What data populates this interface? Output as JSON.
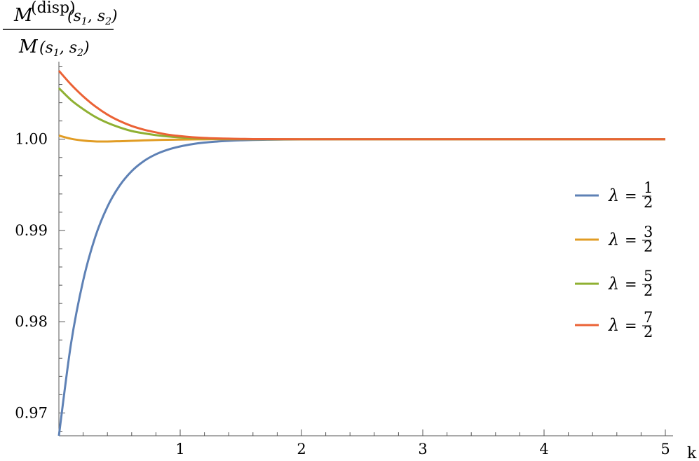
{
  "chart_data": {
    "type": "line",
    "title": "",
    "xlabel": "k",
    "ylabel": {
      "numerator": "M(disp) (s1, s2)",
      "denominator": "M (s1, s2)"
    },
    "xlim": [
      0,
      5
    ],
    "ylim": [
      0.9675,
      1.0085
    ],
    "x_ticks": [
      1,
      2,
      3,
      4,
      5
    ],
    "x_tick_labels": [
      "1",
      "2",
      "3",
      "4",
      "5"
    ],
    "y_ticks": [
      0.97,
      0.98,
      0.99,
      1.0
    ],
    "y_tick_labels": [
      "0.97",
      "0.98",
      "0.99",
      "1.00"
    ],
    "grid": false,
    "legend_position": "right",
    "x": [
      0,
      0.1,
      0.2,
      0.3,
      0.4,
      0.5,
      0.6,
      0.7,
      0.8,
      0.9,
      1.0,
      1.1,
      1.2,
      1.3,
      1.4,
      1.5,
      1.6,
      1.8,
      2.0,
      2.5,
      3.0,
      3.5,
      4.0,
      4.5,
      5.0
    ],
    "series": [
      {
        "name": "λ = 1/2",
        "color": "#5E81B5",
        "values": [
          0.9675,
          0.9776,
          0.9845,
          0.9893,
          0.9926,
          0.9949,
          0.9965,
          0.9976,
          0.99835,
          0.99886,
          0.99921,
          0.99946,
          0.99963,
          0.99974,
          0.99982,
          0.99988,
          0.99992,
          0.99996,
          0.99998,
          1.0,
          1.0,
          1.0,
          1.0,
          1.0,
          1.0
        ]
      },
      {
        "name": "λ = 3/2",
        "color": "#E19C24",
        "values": [
          1.0004,
          1.00005,
          0.99985,
          0.99976,
          0.99975,
          0.99978,
          0.99982,
          0.99987,
          0.99991,
          0.99994,
          0.99996,
          0.99998,
          0.99999,
          1.0,
          1.0,
          1.0,
          1.0,
          1.0,
          1.0,
          1.0,
          1.0,
          1.0,
          1.0,
          1.0,
          1.0
        ]
      },
      {
        "name": "λ = 5/2",
        "color": "#8FB032",
        "values": [
          1.0056,
          1.0043,
          1.0033,
          1.00245,
          1.0018,
          1.0013,
          1.0009,
          1.00065,
          1.00045,
          1.0003,
          1.0002,
          1.00013,
          1.00008,
          1.00005,
          1.00003,
          1.00002,
          1.00001,
          1.0,
          1.0,
          1.0,
          1.0,
          1.0,
          1.0,
          1.0,
          1.0
        ]
      },
      {
        "name": "λ = 7/2",
        "color": "#EB6235",
        "values": [
          1.0075,
          1.006,
          1.0047,
          1.0036,
          1.0027,
          1.002,
          1.00145,
          1.00105,
          1.00075,
          1.0005,
          1.00034,
          1.00022,
          1.00014,
          1.00009,
          1.00006,
          1.00004,
          1.00002,
          1.00001,
          1.0,
          1.0,
          1.0,
          1.0,
          1.0,
          1.0,
          1.0
        ]
      }
    ]
  },
  "legend": [
    {
      "lambda": "λ",
      "equals": "=",
      "num": "1",
      "den": "2",
      "color": "#5E81B5"
    },
    {
      "lambda": "λ",
      "equals": "=",
      "num": "3",
      "den": "2",
      "color": "#E19C24"
    },
    {
      "lambda": "λ",
      "equals": "=",
      "num": "5",
      "den": "2",
      "color": "#8FB032"
    },
    {
      "lambda": "λ",
      "equals": "=",
      "num": "7",
      "den": "2",
      "color": "#EB6235"
    }
  ],
  "ylabel_parts": {
    "script_m": "M",
    "superscript": "(disp)",
    "args": "(s",
    "sub1": "1",
    "comma": ", s",
    "sub2": "2",
    "close": ")"
  }
}
